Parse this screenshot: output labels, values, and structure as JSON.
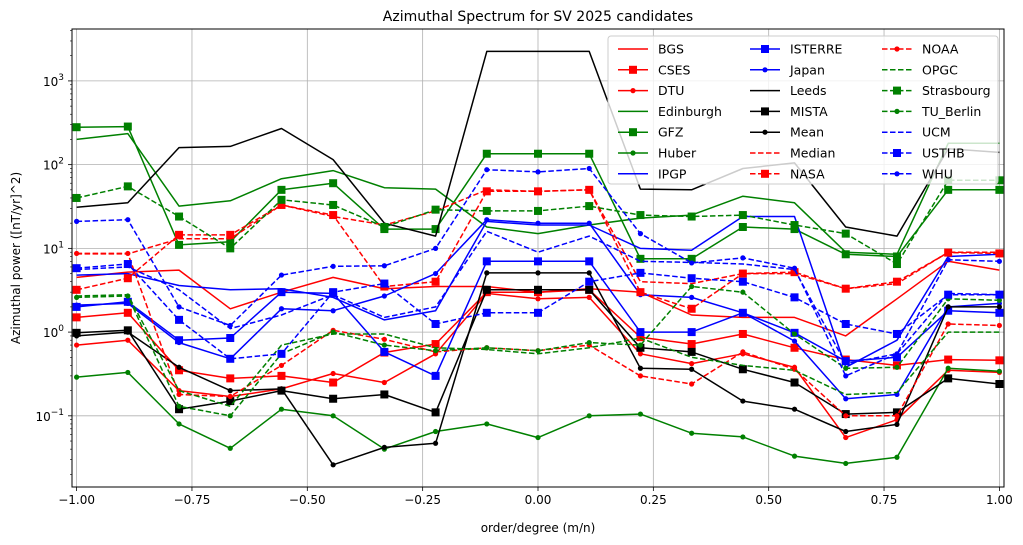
{
  "chart_data": {
    "type": "line",
    "title": "Azimuthal Spectrum for SV 2025 candidates",
    "xlabel": "order/degree (m/n)",
    "ylabel": "Azimuthal power ([nT/yr]^2)",
    "xlim": [
      -1.01,
      1.01
    ],
    "ylim_log10": [
      -1.85,
      3.62
    ],
    "yscale": "log",
    "grid": true,
    "legend_position": "top-right",
    "legend_columns": 3,
    "xticks": [
      {
        "value": -1.0,
        "label": "−1.00"
      },
      {
        "value": -0.75,
        "label": "−0.75"
      },
      {
        "value": -0.5,
        "label": "−0.50"
      },
      {
        "value": -0.25,
        "label": "−0.25"
      },
      {
        "value": 0.0,
        "label": "0.00"
      },
      {
        "value": 0.25,
        "label": "0.25"
      },
      {
        "value": 0.5,
        "label": "0.50"
      },
      {
        "value": 0.75,
        "label": "0.75"
      },
      {
        "value": 1.0,
        "label": "1.00"
      }
    ],
    "yticks": [
      {
        "value": 0.1,
        "base": "10",
        "exp": "−1"
      },
      {
        "value": 1,
        "base": "10",
        "exp": "0"
      },
      {
        "value": 10,
        "base": "10",
        "exp": "1"
      },
      {
        "value": 100,
        "base": "10",
        "exp": "2"
      },
      {
        "value": 1000,
        "base": "10",
        "exp": "3"
      }
    ],
    "x": [
      -1.0,
      -0.889,
      -0.778,
      -0.667,
      -0.556,
      -0.444,
      -0.333,
      -0.222,
      -0.111,
      0.0,
      0.111,
      0.222,
      0.333,
      0.444,
      0.556,
      0.667,
      0.778,
      0.889,
      1.0
    ],
    "series": [
      {
        "name": "BGS",
        "color": "#ff0000",
        "dash": "solid",
        "marker": "none",
        "values": [
          4.5,
          5.2,
          5.5,
          1.9,
          3.0,
          4.5,
          3.3,
          3.5,
          3.5,
          3.0,
          3.3,
          3.0,
          1.6,
          1.5,
          1.5,
          0.9,
          2.5,
          7.0,
          5.5
        ]
      },
      {
        "name": "CSES",
        "color": "#ff0000",
        "dash": "solid",
        "marker": "square",
        "values": [
          1.5,
          1.7,
          0.35,
          0.28,
          0.3,
          0.25,
          0.57,
          0.72,
          3.0,
          3.0,
          3.2,
          0.87,
          0.72,
          0.95,
          0.65,
          0.47,
          0.4,
          0.47,
          0.46
        ]
      },
      {
        "name": "DTU",
        "color": "#ff0000",
        "dash": "solid",
        "marker": "dot",
        "values": [
          0.7,
          0.8,
          0.2,
          0.17,
          0.21,
          0.32,
          0.25,
          0.55,
          2.9,
          2.5,
          2.6,
          0.55,
          0.42,
          0.55,
          0.38,
          0.055,
          0.09,
          0.35,
          0.33
        ]
      },
      {
        "name": "Edinburgh",
        "color": "#008000",
        "dash": "solid",
        "marker": "none",
        "values": [
          200,
          235,
          32,
          37,
          68,
          85,
          53,
          51,
          18,
          15,
          19,
          23,
          25,
          42,
          35,
          9,
          8.5,
          180,
          180
        ]
      },
      {
        "name": "GFZ",
        "color": "#008000",
        "dash": "solid",
        "marker": "square",
        "values": [
          280,
          285,
          11,
          12,
          50,
          60,
          17,
          17,
          135,
          135,
          135,
          7.5,
          7.5,
          18,
          17,
          8.5,
          8,
          50,
          50
        ]
      },
      {
        "name": "Huber",
        "color": "#008000",
        "dash": "solid",
        "marker": "dot",
        "values": [
          0.29,
          0.33,
          0.08,
          0.041,
          0.12,
          0.1,
          0.04,
          0.065,
          0.08,
          0.055,
          0.1,
          0.105,
          0.062,
          0.056,
          0.033,
          0.027,
          0.032,
          0.37,
          0.34
        ]
      },
      {
        "name": "IPGP",
        "color": "#0000ff",
        "dash": "solid",
        "marker": "none",
        "values": [
          4.8,
          5.0,
          3.6,
          3.2,
          3.3,
          2.6,
          1.4,
          1.8,
          21,
          19,
          19,
          10,
          9.5,
          24,
          24,
          0.38,
          0.8,
          8,
          8.5
        ]
      },
      {
        "name": "ISTERRE",
        "color": "#0000ff",
        "dash": "solid",
        "marker": "square",
        "values": [
          2.0,
          2.3,
          0.8,
          0.85,
          3.0,
          2.9,
          0.58,
          0.3,
          7,
          7,
          7,
          1.0,
          1.0,
          1.7,
          0.98,
          0.45,
          0.5,
          1.8,
          1.7
        ]
      },
      {
        "name": "Japan",
        "color": "#0000ff",
        "dash": "solid",
        "marker": "dot",
        "values": [
          2.1,
          2.2,
          0.75,
          0.48,
          1.9,
          1.8,
          2.7,
          5.0,
          22,
          20,
          20,
          2.8,
          2.6,
          1.7,
          0.78,
          0.16,
          0.18,
          2.0,
          2.2
        ]
      },
      {
        "name": "Leeds",
        "color": "#000000",
        "dash": "solid",
        "marker": "none",
        "values": [
          31,
          35,
          160,
          165,
          270,
          115,
          20,
          14,
          2250,
          2250,
          2250,
          51,
          50,
          90,
          105,
          18,
          14,
          155,
          140
        ]
      },
      {
        "name": "MISTA",
        "color": "#000000",
        "dash": "solid",
        "marker": "square",
        "values": [
          0.98,
          1.05,
          0.12,
          0.15,
          0.2,
          0.16,
          0.18,
          0.11,
          3.2,
          3.2,
          3.2,
          0.65,
          0.58,
          0.36,
          0.25,
          0.105,
          0.11,
          0.28,
          0.24
        ]
      },
      {
        "name": "Mean",
        "color": "#000000",
        "dash": "solid",
        "marker": "dot",
        "values": [
          0.9,
          1.0,
          0.38,
          0.2,
          0.21,
          0.026,
          0.042,
          0.047,
          5.1,
          5.1,
          5.1,
          0.37,
          0.36,
          0.15,
          0.12,
          0.065,
          0.079,
          2.0,
          2.0
        ]
      },
      {
        "name": "Median",
        "color": "#ff0000",
        "dash": "dashed",
        "marker": "none",
        "values": [
          8.6,
          8.6,
          13,
          13,
          33,
          24,
          19,
          28,
          50,
          48,
          50,
          4.0,
          3.8,
          5.0,
          5.0,
          3.3,
          3.8,
          9.0,
          9.0
        ]
      },
      {
        "name": "NASA",
        "color": "#ff0000",
        "dash": "dashed",
        "marker": "square",
        "values": [
          3.2,
          4.4,
          14.5,
          14.5,
          33,
          25,
          3.5,
          4.0,
          48,
          48,
          50,
          3.0,
          1.9,
          5.0,
          5.2,
          3.3,
          4.0,
          8.9,
          8.7
        ]
      },
      {
        "name": "NOAA",
        "color": "#ff0000",
        "dash": "dashed",
        "marker": "dot",
        "values": [
          8.7,
          8.7,
          0.18,
          0.17,
          0.4,
          1.05,
          0.82,
          0.58,
          0.65,
          0.6,
          0.7,
          0.3,
          0.24,
          0.58,
          0.36,
          0.1,
          0.1,
          1.25,
          1.2
        ]
      },
      {
        "name": "OPGC",
        "color": "#008000",
        "dash": "dashed",
        "marker": "none",
        "values": [
          2.7,
          2.8,
          0.2,
          0.13,
          0.7,
          0.95,
          0.95,
          0.65,
          0.62,
          0.55,
          0.65,
          0.85,
          0.5,
          0.4,
          0.35,
          0.18,
          0.19,
          1.0,
          1.0
        ]
      },
      {
        "name": "Strasbourg",
        "color": "#008000",
        "dash": "dashed",
        "marker": "square",
        "values": [
          40,
          55,
          24,
          10,
          38,
          33,
          18,
          29,
          28,
          28,
          32,
          25,
          24,
          25,
          19,
          15,
          6.5,
          65,
          65
        ]
      },
      {
        "name": "TU_Berlin",
        "color": "#008000",
        "dash": "dashed",
        "marker": "dot",
        "values": [
          2.6,
          2.7,
          0.13,
          0.1,
          0.55,
          1.0,
          0.7,
          0.6,
          0.65,
          0.6,
          0.75,
          0.7,
          3.5,
          3.0,
          0.95,
          0.37,
          0.38,
          2.5,
          2.4
        ]
      },
      {
        "name": "UCM",
        "color": "#0000ff",
        "dash": "dashed",
        "marker": "none",
        "values": [
          5.6,
          6.0,
          3.2,
          1.1,
          1.6,
          2.8,
          1.5,
          2.0,
          16,
          9,
          14,
          7.0,
          6.8,
          6.5,
          5.6,
          0.42,
          0.55,
          2.9,
          2.8
        ]
      },
      {
        "name": "USTHB",
        "color": "#0000ff",
        "dash": "dashed",
        "marker": "square",
        "values": [
          5.8,
          6.5,
          1.4,
          0.48,
          0.55,
          3.0,
          3.8,
          1.25,
          1.7,
          1.7,
          4.0,
          5.1,
          4.4,
          4.0,
          2.6,
          1.25,
          0.95,
          2.8,
          2.8
        ]
      },
      {
        "name": "WHU",
        "color": "#0000ff",
        "dash": "dashed",
        "marker": "dot",
        "values": [
          21,
          22,
          2.0,
          1.2,
          4.8,
          6.1,
          6.2,
          10,
          87,
          82,
          90,
          15,
          6.7,
          7.7,
          5.8,
          0.3,
          0.55,
          7.3,
          7.0
        ]
      }
    ]
  }
}
